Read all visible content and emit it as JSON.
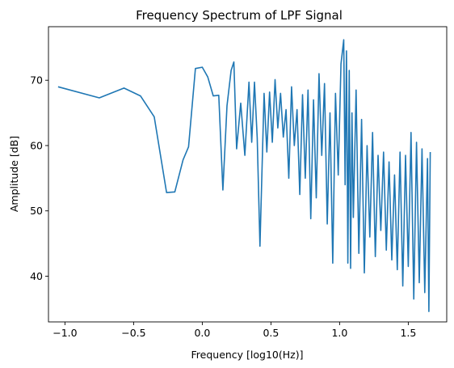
{
  "chart_data": {
    "type": "line",
    "title": "Frequency Spectrum of LPF Signal",
    "xlabel": "Frequency [log10(Hz)]",
    "ylabel": "Amplitude [dB]",
    "xlim": [
      -1.12,
      1.78
    ],
    "ylim": [
      33.0,
      78.2
    ],
    "xticks": [
      -1.0,
      -0.5,
      0.0,
      0.5,
      1.0,
      1.5
    ],
    "xtick_labels": [
      "−1.0",
      "−0.5",
      "0.0",
      "0.5",
      "1.0",
      "1.5"
    ],
    "yticks": [
      40,
      50,
      60,
      70
    ],
    "ytick_labels": [
      "40",
      "50",
      "60",
      "70"
    ],
    "grid": false,
    "legend": "none",
    "series": [
      {
        "color": "#1f77b4",
        "x": [
          -1.05,
          -0.75,
          -0.57,
          -0.45,
          -0.35,
          -0.26,
          -0.2,
          -0.14,
          -0.1,
          -0.05,
          0.0,
          0.04,
          0.08,
          0.12,
          0.15,
          0.18,
          0.21,
          0.23,
          0.25,
          0.28,
          0.31,
          0.34,
          0.36,
          0.38,
          0.4,
          0.42,
          0.45,
          0.47,
          0.49,
          0.51,
          0.53,
          0.55,
          0.57,
          0.59,
          0.61,
          0.63,
          0.65,
          0.67,
          0.69,
          0.71,
          0.73,
          0.75,
          0.77,
          0.79,
          0.81,
          0.83,
          0.85,
          0.87,
          0.89,
          0.91,
          0.93,
          0.95,
          0.97,
          0.99,
          1.01,
          1.03,
          1.04,
          1.05,
          1.06,
          1.07,
          1.08,
          1.09,
          1.1,
          1.12,
          1.14,
          1.16,
          1.18,
          1.2,
          1.22,
          1.24,
          1.26,
          1.28,
          1.3,
          1.32,
          1.34,
          1.36,
          1.38,
          1.4,
          1.42,
          1.44,
          1.46,
          1.48,
          1.5,
          1.52,
          1.54,
          1.56,
          1.58,
          1.6,
          1.62,
          1.64,
          1.65,
          1.66
        ],
        "y": [
          69.0,
          67.3,
          68.8,
          67.6,
          64.4,
          52.8,
          52.9,
          57.8,
          59.8,
          71.8,
          72.0,
          70.5,
          67.6,
          67.7,
          53.2,
          66.1,
          71.5,
          72.8,
          59.5,
          66.5,
          58.5,
          69.7,
          60.5,
          69.7,
          61.2,
          44.6,
          68.0,
          59.0,
          68.2,
          60.5,
          70.1,
          62.7,
          68.0,
          61.3,
          65.5,
          55.0,
          69.0,
          60.0,
          65.5,
          52.5,
          67.8,
          55.0,
          68.5,
          48.8,
          67.0,
          52.0,
          71.0,
          58.5,
          69.5,
          48.0,
          65.0,
          42.0,
          68.0,
          55.5,
          72.5,
          76.2,
          54.0,
          74.5,
          42.0,
          71.5,
          41.2,
          65.0,
          49.0,
          68.5,
          43.5,
          64.0,
          40.5,
          60.0,
          46.0,
          62.0,
          43.0,
          58.5,
          47.0,
          59.0,
          44.0,
          57.5,
          42.5,
          55.5,
          41.0,
          59.0,
          38.5,
          58.5,
          41.5,
          62.0,
          36.5,
          60.5,
          39.0,
          59.5,
          37.5,
          58.0,
          34.6,
          59.0
        ]
      }
    ]
  }
}
